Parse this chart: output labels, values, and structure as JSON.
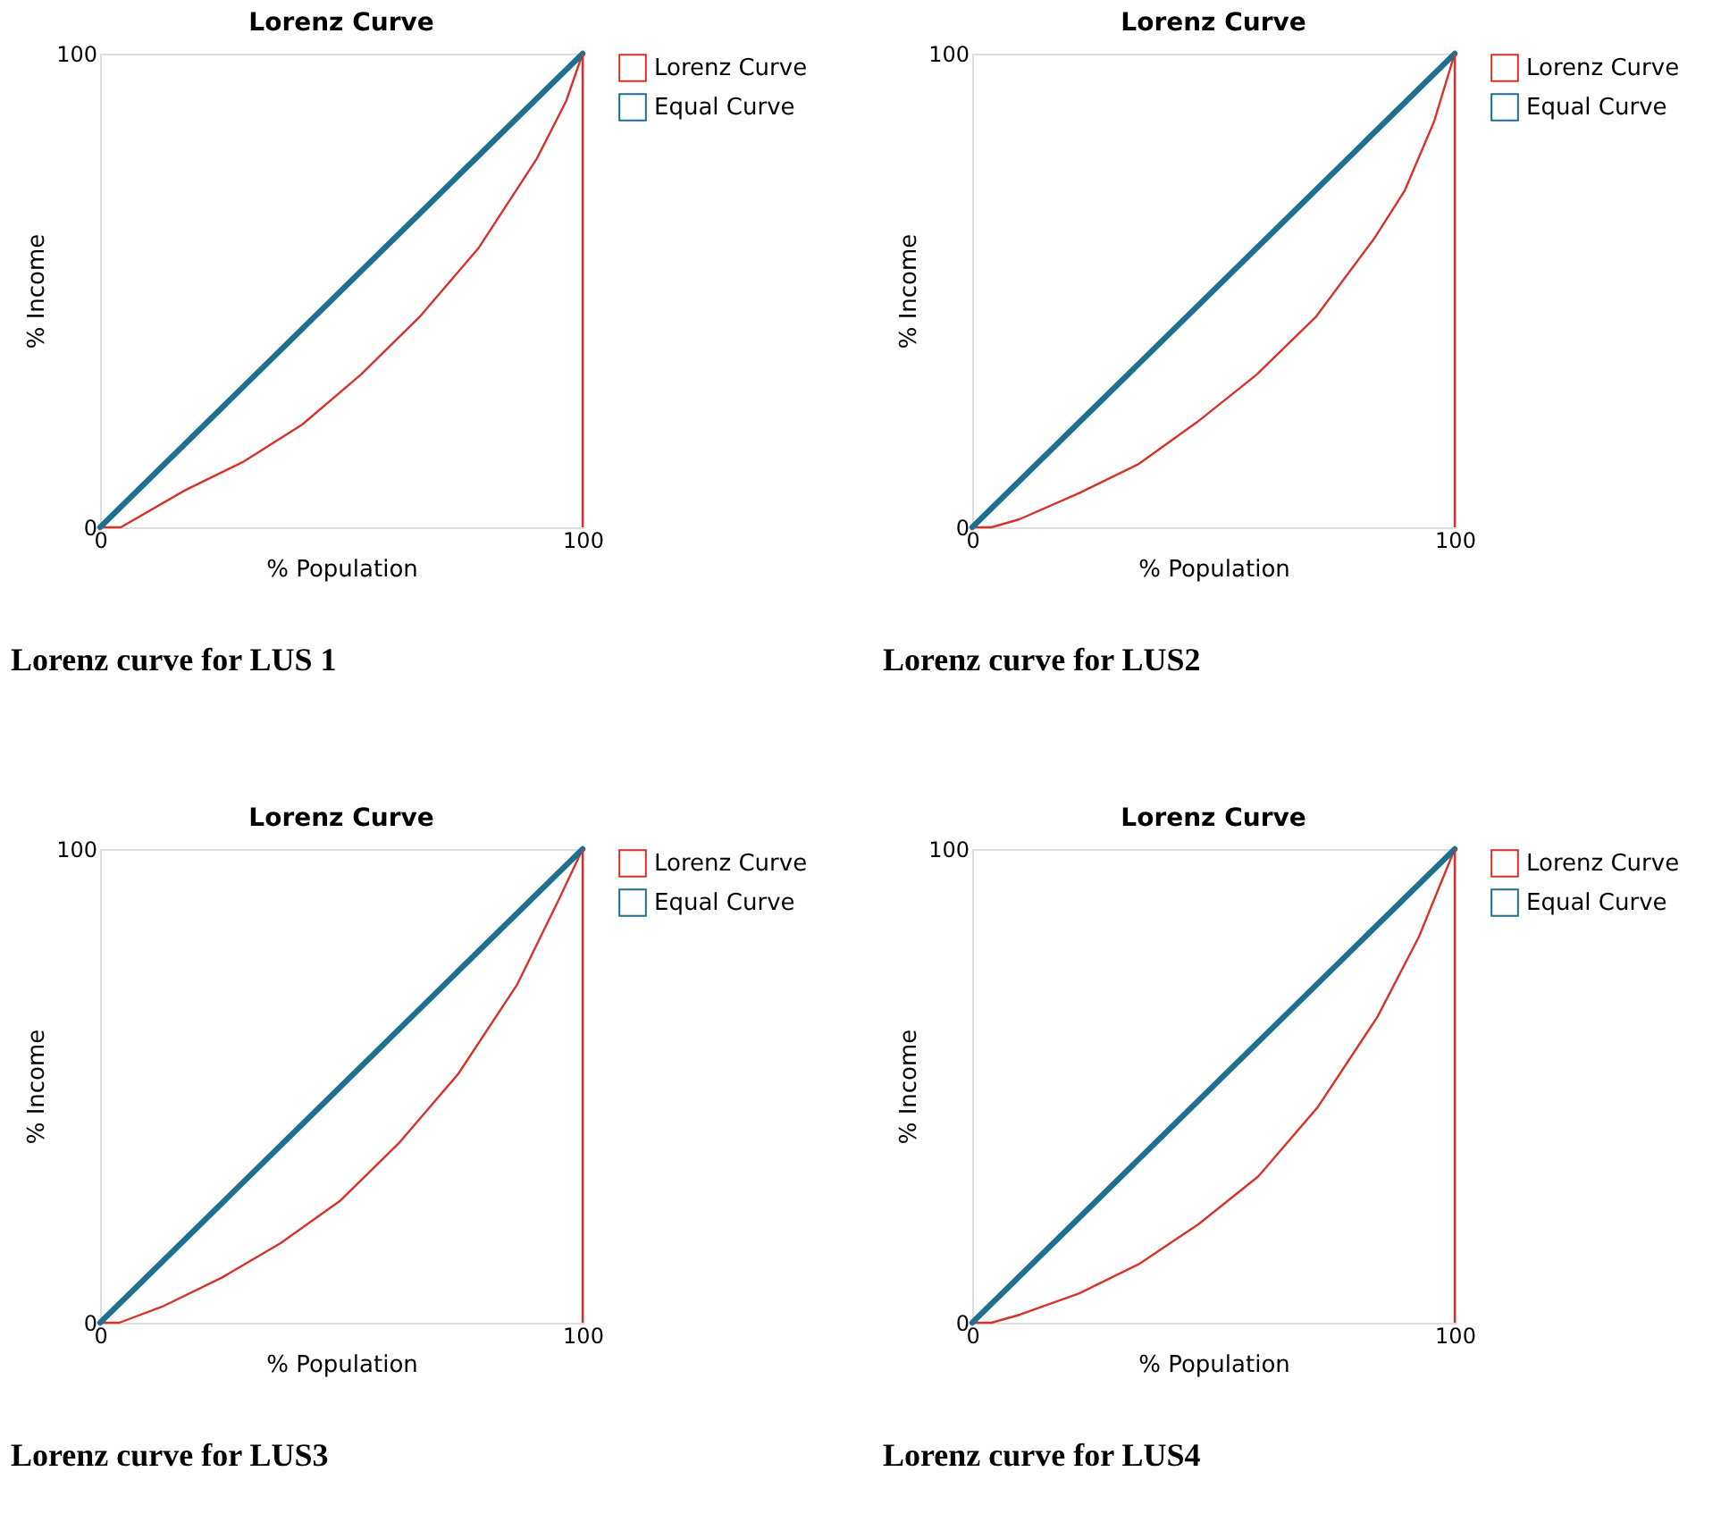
{
  "chart_data": [
    {
      "type": "line",
      "title": "Lorenz Curve",
      "xlabel": "% Population",
      "ylabel": "% Income",
      "xlim": [
        0,
        100
      ],
      "ylim": [
        0,
        100
      ],
      "xticks": [
        0,
        100
      ],
      "yticks": [
        0,
        100
      ],
      "legend": "right",
      "annotations": [
        "Lorenz curve for LUS 1"
      ],
      "ref_lines": [
        {
          "axis": "x",
          "value": 100,
          "color": "#d73229"
        }
      ],
      "series": [
        {
          "name": "Lorenz Curve",
          "color": "#d73229",
          "x": [
            0,
            4.3,
            17.6,
            29.8,
            41.9,
            54,
            66.2,
            78.4,
            90.5,
            96.6,
            100
          ],
          "values": [
            0,
            0,
            7.8,
            13.9,
            21.7,
            32.2,
            44.4,
            58.9,
            77.8,
            90,
            100
          ]
        },
        {
          "name": "Equal Curve",
          "color": "#1f6f8f",
          "x": [
            0,
            100
          ],
          "values": [
            0,
            100
          ]
        }
      ]
    },
    {
      "type": "line",
      "title": "Lorenz Curve",
      "xlabel": "% Population",
      "ylabel": "% Income",
      "xlim": [
        0,
        100
      ],
      "ylim": [
        0,
        100
      ],
      "xticks": [
        0,
        100
      ],
      "yticks": [
        0,
        100
      ],
      "legend": "right",
      "annotations": [
        "Lorenz curve for LUS2"
      ],
      "ref_lines": [
        {
          "axis": "x",
          "value": 100,
          "color": "#d73229"
        }
      ],
      "series": [
        {
          "name": "Lorenz Curve",
          "color": "#d73229",
          "x": [
            0,
            4,
            9.8,
            22.1,
            34.4,
            46.6,
            58.9,
            71.2,
            83.4,
            89.6,
            95.7,
            100
          ],
          "values": [
            0,
            0,
            1.7,
            7.2,
            13.3,
            22.2,
            32.2,
            44.4,
            61.1,
            71,
            85.6,
            100
          ]
        },
        {
          "name": "Equal Curve",
          "color": "#1f6f8f",
          "x": [
            0,
            100
          ],
          "values": [
            0,
            100
          ]
        }
      ]
    },
    {
      "type": "line",
      "title": "Lorenz Curve",
      "xlabel": "% Population",
      "ylabel": "% Income",
      "xlim": [
        0,
        100
      ],
      "ylim": [
        0,
        100
      ],
      "xticks": [
        0,
        100
      ],
      "yticks": [
        0,
        100
      ],
      "legend": "right",
      "annotations": [
        "Lorenz curve for LUS3"
      ],
      "ref_lines": [
        {
          "axis": "x",
          "value": 100,
          "color": "#d73229"
        }
      ],
      "series": [
        {
          "name": "Lorenz Curve",
          "color": "#d73229",
          "x": [
            0,
            4,
            12.9,
            25.2,
            37.4,
            49.7,
            62,
            74.2,
            86.5,
            95.1,
            100
          ],
          "values": [
            0,
            0,
            3.4,
            9.5,
            16.8,
            25.7,
            38,
            52.5,
            71.5,
            89.4,
            100
          ]
        },
        {
          "name": "Equal Curve",
          "color": "#1f6f8f",
          "x": [
            0,
            100
          ],
          "values": [
            0,
            100
          ]
        }
      ]
    },
    {
      "type": "line",
      "title": "Lorenz Curve",
      "xlabel": "% Population",
      "ylabel": "% Income",
      "xlim": [
        0,
        100
      ],
      "ylim": [
        0,
        100
      ],
      "xticks": [
        0,
        100
      ],
      "yticks": [
        0,
        100
      ],
      "legend": "right",
      "annotations": [
        "Lorenz curve for LUS4"
      ],
      "ref_lines": [
        {
          "axis": "x",
          "value": 100,
          "color": "#d73229"
        }
      ],
      "series": [
        {
          "name": "Lorenz Curve",
          "color": "#d73229",
          "x": [
            0,
            4,
            9.9,
            22.2,
            34.6,
            46.9,
            59.3,
            71.6,
            84,
            92.6,
            100
          ],
          "values": [
            0,
            0,
            1.7,
            6.2,
            12.4,
            20.8,
            30.9,
            45.5,
            64.6,
            81.5,
            100
          ]
        },
        {
          "name": "Equal Curve",
          "color": "#1f6f8f",
          "x": [
            0,
            100
          ],
          "values": [
            0,
            100
          ]
        }
      ]
    }
  ]
}
